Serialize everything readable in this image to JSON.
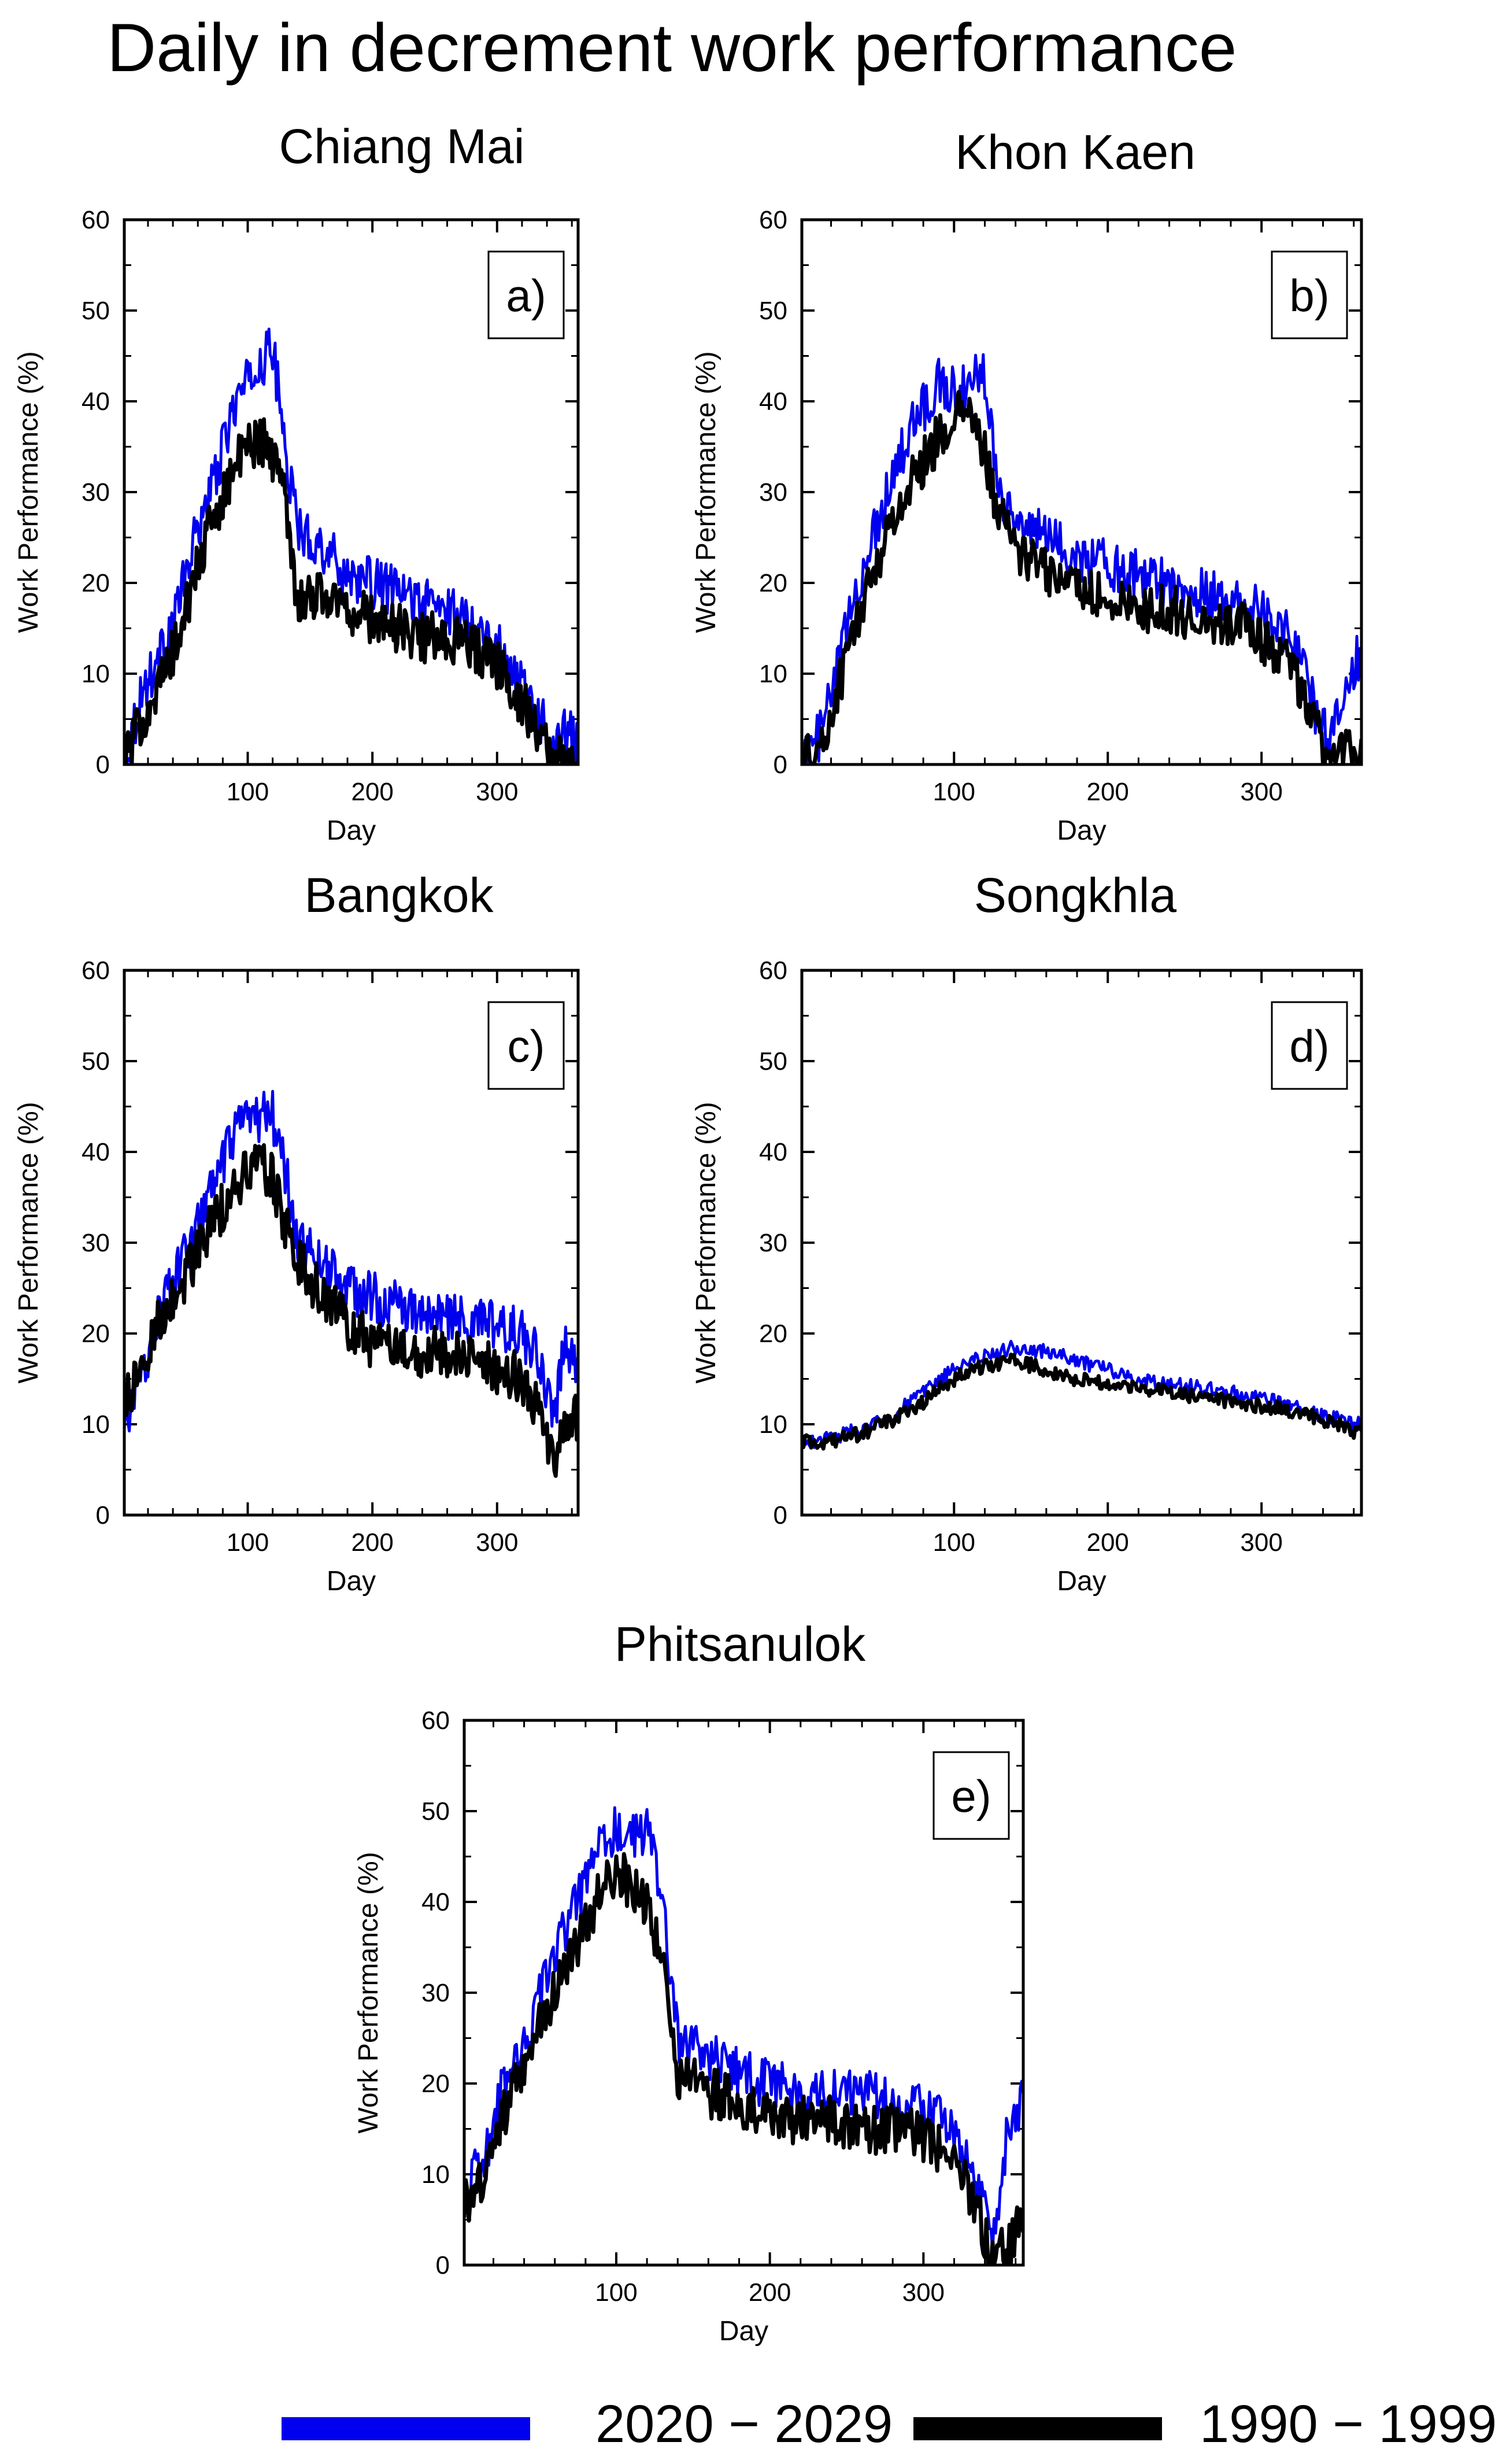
{
  "title": "Daily in decrement work performance",
  "colors": {
    "future": "#0000ee",
    "baseline": "#000000"
  },
  "chart_data": [
    {
      "type": "line",
      "panel": "a)",
      "title": "Chiang Mai",
      "xlabel": "Day",
      "ylabel": "Work Performance (%)",
      "xlim": [
        1,
        365
      ],
      "ylim": [
        0,
        60
      ],
      "xticks": [
        100,
        200,
        300
      ],
      "yticks": [
        0,
        10,
        20,
        30,
        40,
        50,
        60
      ],
      "series": [
        {
          "name": "2020 - 2029",
          "x": [
            1,
            15,
            30,
            45,
            60,
            75,
            90,
            100,
            110,
            120,
            130,
            140,
            160,
            180,
            200,
            220,
            240,
            260,
            280,
            300,
            320,
            335,
            345,
            355,
            365
          ],
          "values": [
            0,
            8,
            12,
            18,
            26,
            32,
            40,
            42,
            44,
            46,
            35,
            26,
            24,
            21,
            20,
            19,
            18,
            17,
            16,
            13,
            9,
            5,
            2,
            4,
            2
          ]
        },
        {
          "name": "1990 - 1999",
          "x": [
            1,
            15,
            30,
            45,
            60,
            75,
            90,
            100,
            110,
            120,
            130,
            140,
            160,
            180,
            200,
            220,
            240,
            260,
            280,
            300,
            320,
            335,
            345,
            355,
            365
          ],
          "values": [
            0,
            5,
            9,
            14,
            22,
            28,
            33,
            35,
            36,
            34,
            30,
            18,
            19,
            17,
            16,
            15,
            14,
            14,
            13,
            11,
            7,
            3,
            1,
            0,
            0
          ]
        }
      ]
    },
    {
      "type": "line",
      "panel": "b)",
      "title": "Khon Kaen",
      "xlabel": "Day",
      "ylabel": "Work Performance (%)",
      "xlim": [
        1,
        365
      ],
      "ylim": [
        0,
        60
      ],
      "xticks": [
        100,
        200,
        300
      ],
      "yticks": [
        0,
        10,
        20,
        30,
        40,
        50,
        60
      ],
      "series": [
        {
          "name": "2020 - 2029",
          "x": [
            1,
            15,
            30,
            45,
            60,
            75,
            90,
            100,
            110,
            120,
            130,
            140,
            160,
            180,
            200,
            220,
            240,
            260,
            280,
            300,
            320,
            335,
            345,
            355,
            365
          ],
          "values": [
            0,
            4,
            15,
            24,
            32,
            38,
            42,
            41,
            42,
            43,
            30,
            27,
            25,
            23,
            22,
            21,
            20,
            19,
            18,
            17,
            14,
            6,
            2,
            10,
            12
          ]
        },
        {
          "name": "1990 - 1999",
          "x": [
            1,
            15,
            30,
            45,
            60,
            75,
            90,
            100,
            110,
            120,
            130,
            140,
            160,
            180,
            200,
            220,
            240,
            260,
            280,
            300,
            320,
            335,
            345,
            355,
            365
          ],
          "values": [
            0,
            2,
            12,
            20,
            27,
            32,
            36,
            38,
            39,
            34,
            27,
            24,
            21,
            20,
            18,
            17,
            17,
            16,
            16,
            14,
            11,
            4,
            0,
            1,
            2
          ]
        }
      ]
    },
    {
      "type": "line",
      "panel": "c)",
      "title": "Bangkok",
      "xlabel": "Day",
      "ylabel": "Work Performance (%)",
      "xlim": [
        1,
        365
      ],
      "ylim": [
        0,
        60
      ],
      "xticks": [
        100,
        200,
        300
      ],
      "yticks": [
        0,
        10,
        20,
        30,
        40,
        50,
        60
      ],
      "series": [
        {
          "name": "2020 - 2029",
          "x": [
            1,
            15,
            30,
            45,
            60,
            75,
            90,
            100,
            110,
            120,
            130,
            140,
            160,
            180,
            200,
            220,
            240,
            260,
            280,
            300,
            320,
            335,
            345,
            355,
            365
          ],
          "values": [
            10,
            15,
            23,
            27,
            32,
            37,
            42,
            43,
            44,
            44,
            38,
            30,
            28,
            25,
            24,
            23,
            22,
            22,
            21,
            21,
            20,
            17,
            10,
            19,
            17
          ]
        },
        {
          "name": "1990 - 1999",
          "x": [
            1,
            15,
            30,
            45,
            60,
            75,
            90,
            100,
            110,
            120,
            130,
            140,
            160,
            180,
            200,
            220,
            240,
            260,
            280,
            300,
            320,
            335,
            345,
            355,
            365
          ],
          "values": [
            12,
            16,
            22,
            25,
            29,
            33,
            36,
            38,
            39,
            37,
            32,
            28,
            24,
            21,
            19,
            18,
            18,
            18,
            17,
            16,
            15,
            11,
            6,
            9,
            11
          ]
        }
      ]
    },
    {
      "type": "line",
      "panel": "d)",
      "title": "Songkhla",
      "xlabel": "Day",
      "ylabel": "Work Performance (%)",
      "xlim": [
        1,
        365
      ],
      "ylim": [
        0,
        60
      ],
      "xticks": [
        100,
        200,
        300
      ],
      "yticks": [
        0,
        10,
        20,
        30,
        40,
        50,
        60
      ],
      "series": [
        {
          "name": "2020 - 2029",
          "x": [
            1,
            20,
            40,
            60,
            80,
            100,
            120,
            140,
            160,
            180,
            200,
            220,
            240,
            260,
            280,
            300,
            320,
            340,
            365
          ],
          "values": [
            8,
            8.5,
            9.5,
            11,
            13.5,
            16,
            17.5,
            18.5,
            18,
            17,
            16,
            15,
            14.5,
            14,
            13.5,
            13,
            12,
            11,
            10
          ]
        },
        {
          "name": "1990 - 1999",
          "x": [
            1,
            20,
            40,
            60,
            80,
            100,
            120,
            140,
            160,
            180,
            200,
            220,
            240,
            260,
            280,
            300,
            320,
            340,
            365
          ],
          "values": [
            8,
            8,
            9,
            10.5,
            12.5,
            15,
            16.5,
            17,
            16,
            15,
            14.5,
            14,
            13.5,
            13,
            12.5,
            12,
            11.5,
            10.5,
            9
          ]
        }
      ]
    },
    {
      "type": "line",
      "panel": "e)",
      "title": "Phitsanulok",
      "xlabel": "Day",
      "ylabel": "Work Performance (%)",
      "xlim": [
        1,
        365
      ],
      "ylim": [
        0,
        60
      ],
      "xticks": [
        100,
        200,
        300
      ],
      "yticks": [
        0,
        10,
        20,
        30,
        40,
        50,
        60
      ],
      "series": [
        {
          "name": "2020 - 2029",
          "x": [
            1,
            15,
            30,
            45,
            60,
            75,
            90,
            100,
            110,
            120,
            130,
            140,
            160,
            180,
            200,
            220,
            240,
            260,
            280,
            300,
            320,
            335,
            345,
            355,
            365
          ],
          "values": [
            8,
            12,
            22,
            27,
            34,
            40,
            46,
            48,
            47,
            48,
            40,
            25,
            23,
            21,
            20,
            19,
            19,
            19,
            18,
            18,
            14,
            9,
            3,
            15,
            18
          ]
        },
        {
          "name": "1990 - 1999",
          "x": [
            1,
            15,
            30,
            45,
            60,
            75,
            90,
            100,
            110,
            120,
            130,
            140,
            160,
            180,
            200,
            220,
            240,
            260,
            280,
            300,
            320,
            335,
            345,
            355,
            365
          ],
          "values": [
            7,
            10,
            18,
            24,
            30,
            35,
            41,
            43,
            42,
            40,
            33,
            21,
            19,
            18,
            16,
            16,
            16,
            15,
            15,
            14,
            12,
            6,
            0,
            2,
            5
          ]
        }
      ]
    }
  ],
  "legend": [
    {
      "label": "2020 − 2029",
      "color": "#0000ee"
    },
    {
      "label": "1990 − 1999",
      "color": "#000000"
    }
  ]
}
